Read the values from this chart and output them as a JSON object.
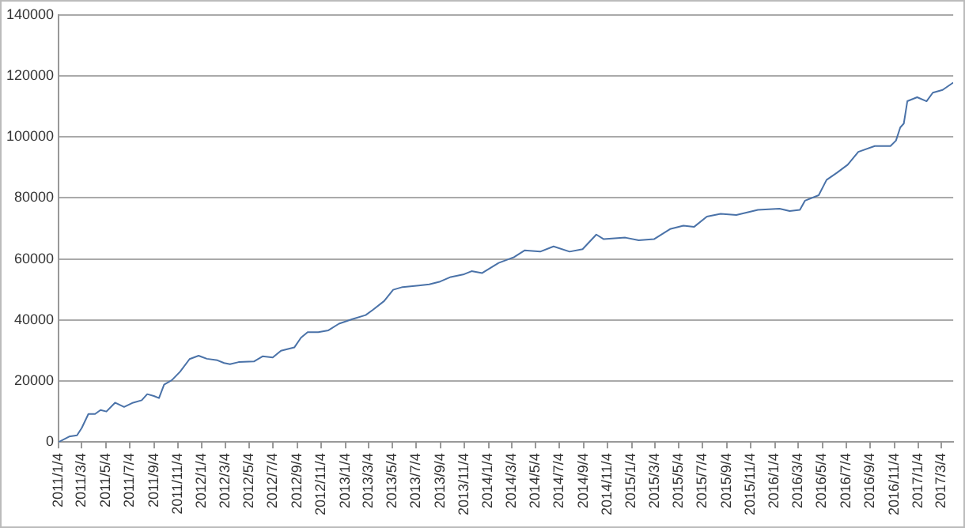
{
  "chart_data": {
    "type": "line",
    "x": [
      "2011-01-04",
      "2011-01-31",
      "2011-02-20",
      "2011-03-04",
      "2011-03-21",
      "2011-04-07",
      "2011-04-21",
      "2011-05-06",
      "2011-05-28",
      "2011-06-20",
      "2011-07-13",
      "2011-08-04",
      "2011-08-18",
      "2011-09-04",
      "2011-09-17",
      "2011-09-30",
      "2011-10-20",
      "2011-11-10",
      "2011-12-04",
      "2011-12-27",
      "2012-01-17",
      "2012-02-13",
      "2012-03-01",
      "2012-03-16",
      "2012-04-07",
      "2012-05-16",
      "2012-06-07",
      "2012-07-03",
      "2012-07-24",
      "2012-08-27",
      "2012-09-13",
      "2012-09-30",
      "2012-10-27",
      "2012-11-22",
      "2012-12-19",
      "2013-01-22",
      "2013-02-25",
      "2013-03-16",
      "2013-04-13",
      "2013-05-06",
      "2013-05-30",
      "2013-07-10",
      "2013-08-06",
      "2013-09-03",
      "2013-09-30",
      "2013-11-03",
      "2013-11-22",
      "2013-12-19",
      "2014-01-30",
      "2014-03-10",
      "2014-04-06",
      "2014-05-16",
      "2014-06-19",
      "2014-07-30",
      "2014-09-01",
      "2014-10-06",
      "2014-10-25",
      "2014-12-19",
      "2015-01-22",
      "2015-03-02",
      "2015-04-12",
      "2015-05-16",
      "2015-06-12",
      "2015-07-15",
      "2015-08-19",
      "2015-09-28",
      "2015-11-22",
      "2016-01-16",
      "2016-02-11",
      "2016-03-08",
      "2016-03-21",
      "2016-04-25",
      "2016-05-15",
      "2016-06-11",
      "2016-07-08",
      "2016-08-04",
      "2016-09-15",
      "2016-10-25",
      "2016-11-08",
      "2016-11-19",
      "2016-11-28",
      "2016-12-07",
      "2017-01-01",
      "2017-01-25",
      "2017-02-10",
      "2017-03-07",
      "2017-04-03"
    ],
    "series": [
      {
        "color": "#4a72a8",
        "values": [
          0,
          1800,
          2200,
          4600,
          9200,
          9200,
          10500,
          10000,
          12900,
          11500,
          12900,
          13700,
          15700,
          15100,
          14400,
          18800,
          20300,
          23100,
          27200,
          28300,
          27300,
          26800,
          25900,
          25500,
          26200,
          26400,
          28100,
          27700,
          29900,
          31000,
          34200,
          36000,
          36000,
          36600,
          38800,
          40300,
          41600,
          43400,
          46200,
          49900,
          50800,
          51300,
          51700,
          52600,
          54100,
          55000,
          56000,
          55400,
          58700,
          60600,
          62800,
          62400,
          64100,
          62400,
          63200,
          68000,
          66500,
          67000,
          66100,
          66500,
          69800,
          70900,
          70500,
          73900,
          74800,
          74400,
          76100,
          76500,
          75700,
          76100,
          79100,
          80900,
          85900,
          88300,
          90900,
          95100,
          97000,
          97000,
          98800,
          103100,
          104400,
          111700,
          113000,
          111700,
          114500,
          115400,
          117800
        ]
      }
    ],
    "xlim": [
      "2011-01-04",
      "2017-04-03"
    ],
    "xticks": [
      {
        "value": "2011-01-04",
        "label": "2011/1/4"
      },
      {
        "value": "2011-03-04",
        "label": "2011/3/4"
      },
      {
        "value": "2011-05-04",
        "label": "2011/5/4"
      },
      {
        "value": "2011-07-04",
        "label": "2011/7/4"
      },
      {
        "value": "2011-09-04",
        "label": "2011/9/4"
      },
      {
        "value": "2011-11-04",
        "label": "2011/11/4"
      },
      {
        "value": "2012-01-04",
        "label": "2012/1/4"
      },
      {
        "value": "2012-03-04",
        "label": "2012/3/4"
      },
      {
        "value": "2012-05-04",
        "label": "2012/5/4"
      },
      {
        "value": "2012-07-04",
        "label": "2012/7/4"
      },
      {
        "value": "2012-09-04",
        "label": "2012/9/4"
      },
      {
        "value": "2012-11-04",
        "label": "2012/11/4"
      },
      {
        "value": "2013-01-04",
        "label": "2013/1/4"
      },
      {
        "value": "2013-03-04",
        "label": "2013/3/4"
      },
      {
        "value": "2013-05-04",
        "label": "2013/5/4"
      },
      {
        "value": "2013-07-04",
        "label": "2013/7/4"
      },
      {
        "value": "2013-09-04",
        "label": "2013/9/4"
      },
      {
        "value": "2013-11-04",
        "label": "2013/11/4"
      },
      {
        "value": "2014-01-04",
        "label": "2014/1/4"
      },
      {
        "value": "2014-03-04",
        "label": "2014/3/4"
      },
      {
        "value": "2014-05-04",
        "label": "2014/5/4"
      },
      {
        "value": "2014-07-04",
        "label": "2014/7/4"
      },
      {
        "value": "2014-09-04",
        "label": "2014/9/4"
      },
      {
        "value": "2014-11-04",
        "label": "2014/11/4"
      },
      {
        "value": "2015-01-04",
        "label": "2015/1/4"
      },
      {
        "value": "2015-03-04",
        "label": "2015/3/4"
      },
      {
        "value": "2015-05-04",
        "label": "2015/5/4"
      },
      {
        "value": "2015-07-04",
        "label": "2015/7/4"
      },
      {
        "value": "2015-09-04",
        "label": "2015/9/4"
      },
      {
        "value": "2015-11-04",
        "label": "2015/11/4"
      },
      {
        "value": "2016-01-04",
        "label": "2016/1/4"
      },
      {
        "value": "2016-03-04",
        "label": "2016/3/4"
      },
      {
        "value": "2016-05-04",
        "label": "2016/5/4"
      },
      {
        "value": "2016-07-04",
        "label": "2016/7/4"
      },
      {
        "value": "2016-09-04",
        "label": "2016/9/4"
      },
      {
        "value": "2016-11-04",
        "label": "2016/11/4"
      },
      {
        "value": "2017-01-04",
        "label": "2017/1/4"
      },
      {
        "value": "2017-03-04",
        "label": "2017/3/4"
      }
    ],
    "ylim": [
      0,
      140000
    ],
    "yticks": [
      0,
      20000,
      40000,
      60000,
      80000,
      100000,
      120000,
      140000
    ],
    "grid": "y",
    "legend": false,
    "marker": "none",
    "line_style": "solid"
  }
}
